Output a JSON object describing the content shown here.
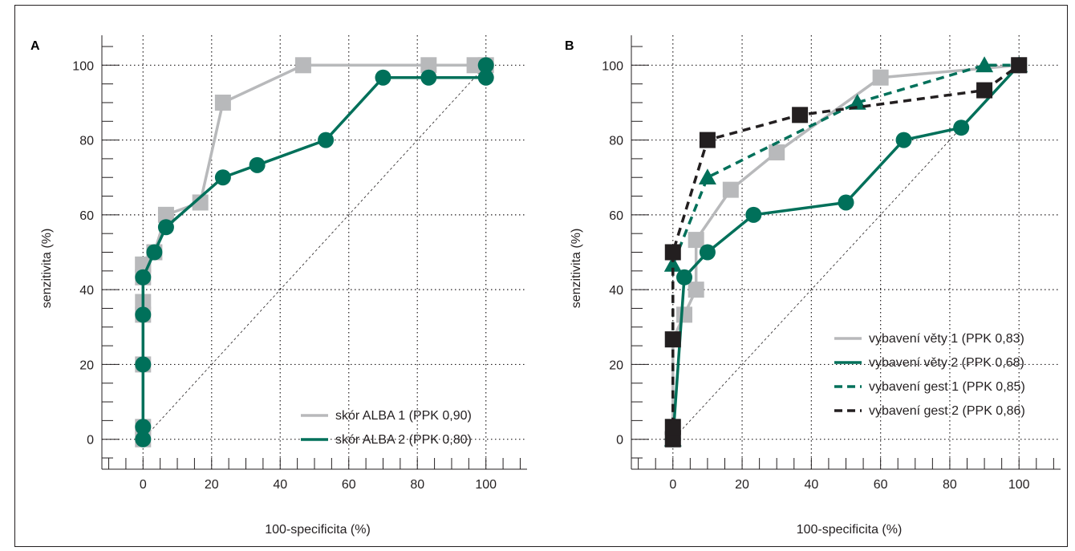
{
  "colors": {
    "gray": "#b8b9bb",
    "green": "#00705a",
    "black": "#231f20",
    "axis": "#231f20"
  },
  "chart_data": [
    {
      "panel": "A",
      "type": "line",
      "xlabel": "100-specificita (%)",
      "ylabel": "senzitivita (%)",
      "xlim": [
        -12,
        112
      ],
      "ylim": [
        -8,
        108
      ],
      "xticks": [
        0,
        20,
        40,
        60,
        80,
        100
      ],
      "yticks": [
        0,
        20,
        40,
        60,
        80,
        100
      ],
      "grid": true,
      "legend_position": "bottom-right",
      "series": [
        {
          "name": "skór ALBA 1 (PPK 0,90)",
          "color": "#b8b9bb",
          "dash": false,
          "marker": "square",
          "x": [
            0,
            0,
            0,
            0,
            0,
            0,
            0,
            0,
            3.3,
            6.7,
            16.7,
            23.3,
            46.7,
            83.3,
            96.7,
            100
          ],
          "y": [
            0,
            3.3,
            20,
            33.3,
            36.7,
            43.3,
            46.7,
            46.7,
            50,
            60,
            63.3,
            90,
            100,
            100,
            100,
            100
          ]
        },
        {
          "name": "skór ALBA 2 (PPK 0,80)",
          "color": "#00705a",
          "dash": false,
          "marker": "circle",
          "x": [
            0,
            0,
            0,
            0,
            0,
            3.3,
            6.7,
            23.3,
            33.3,
            53.3,
            70,
            83.3,
            100,
            100
          ],
          "y": [
            0,
            3.3,
            20,
            33.3,
            43.3,
            50,
            56.7,
            70,
            73.3,
            80,
            96.7,
            96.7,
            96.7,
            100
          ]
        }
      ]
    },
    {
      "panel": "B",
      "type": "line",
      "xlabel": "100-specificita (%)",
      "ylabel": "senzitivita (%)",
      "xlim": [
        -12,
        112
      ],
      "ylim": [
        -8,
        108
      ],
      "xticks": [
        0,
        20,
        40,
        60,
        80,
        100
      ],
      "yticks": [
        0,
        20,
        40,
        60,
        80,
        100
      ],
      "grid": true,
      "legend_position": "bottom-right",
      "series": [
        {
          "name": "vybavení věty 1 (PPK 0,83)",
          "color": "#b8b9bb",
          "dash": false,
          "marker": "square",
          "x": [
            0,
            0,
            3.3,
            6.7,
            6.7,
            16.7,
            30,
            60,
            100
          ],
          "y": [
            0,
            26.7,
            33.3,
            40,
            53.3,
            66.7,
            76.7,
            96.7,
            100
          ]
        },
        {
          "name": "vybavení věty 2 (PPK 0,68)",
          "color": "#00705a",
          "dash": false,
          "marker": "circle",
          "x": [
            0,
            3.3,
            10,
            23.3,
            50,
            66.7,
            83.3,
            100
          ],
          "y": [
            0,
            43.3,
            50,
            60,
            63.3,
            80,
            83.3,
            100
          ]
        },
        {
          "name": "vybavení gest 1 (PPK 0,85)",
          "color": "#00705a",
          "dash": true,
          "marker": "triangle",
          "x": [
            0,
            0,
            10,
            53.3,
            90,
            100
          ],
          "y": [
            0,
            46.7,
            70,
            90,
            100,
            100
          ]
        },
        {
          "name": "vybavení gest 2 (PPK 0,86)",
          "color": "#231f20",
          "dash": true,
          "marker": "square",
          "x": [
            0,
            0,
            0,
            0,
            10,
            36.7,
            90,
            100
          ],
          "y": [
            0,
            3.3,
            26.7,
            50,
            80,
            86.7,
            93.3,
            100
          ]
        }
      ]
    }
  ]
}
